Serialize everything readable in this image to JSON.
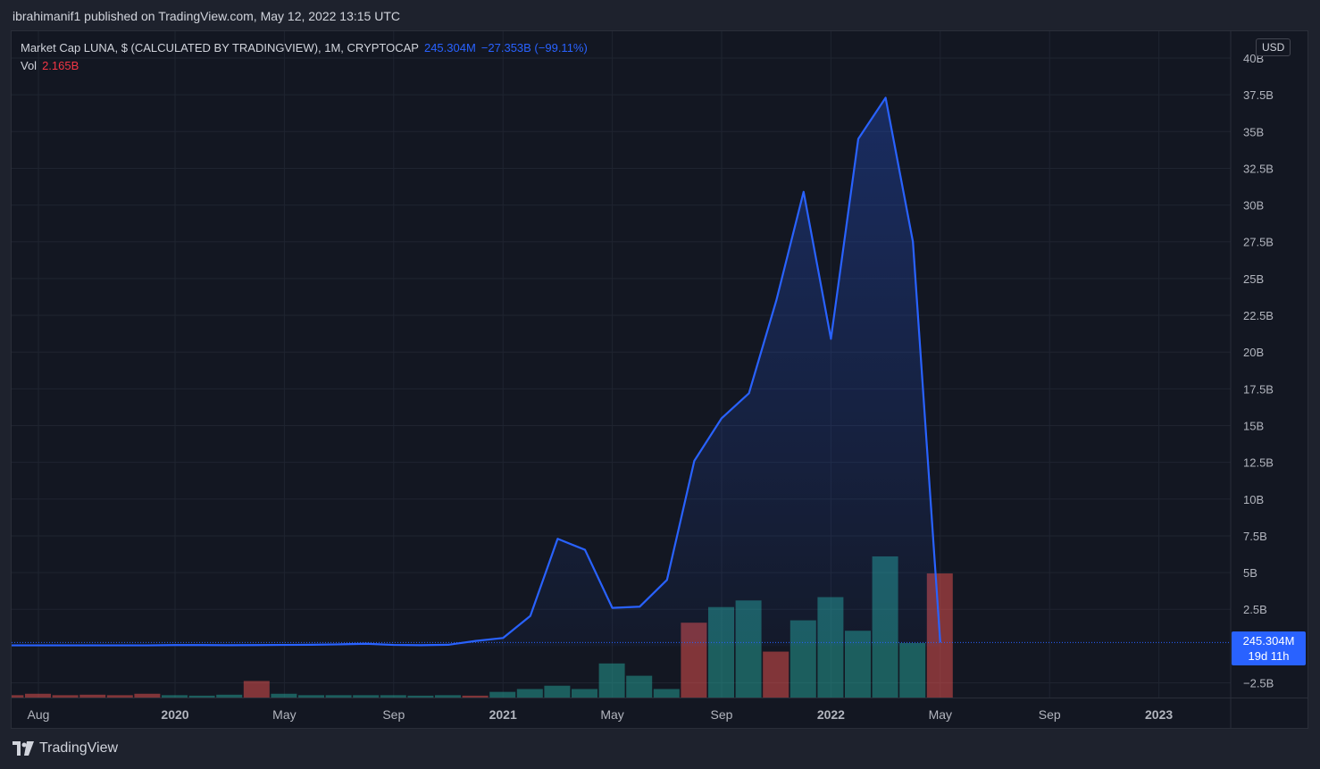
{
  "header": {
    "published": "ibrahimanif1 published on TradingView.com, May 12, 2022 13:15 UTC"
  },
  "legend": {
    "title": "Market Cap LUNA, $ (CALCULATED BY TRADINGVIEW), 1M, CRYPTOCAP",
    "last_value": "245.304M",
    "change": "−27.353B (−99.11%)",
    "vol_label": "Vol",
    "vol_value": "2.165B"
  },
  "currency": "USD",
  "price_tag": {
    "value": "245.304M",
    "countdown": "19d 11h"
  },
  "footer": {
    "brand": "TradingView"
  },
  "colors": {
    "line": "#2962ff",
    "vol_up": "#26a69a",
    "vol_down": "#ef5350",
    "background": "#131722",
    "grid": "#1f2430"
  },
  "chart_data": {
    "type": "line",
    "symbol": "Market Cap LUNA",
    "interval": "1M",
    "ylim": [
      -3.5,
      40
    ],
    "y_unit": "B USD",
    "y_ticks": [
      "40B",
      "37.5B",
      "35B",
      "32.5B",
      "30B",
      "27.5B",
      "25B",
      "22.5B",
      "20B",
      "17.5B",
      "15B",
      "12.5B",
      "10B",
      "7.5B",
      "5B",
      "2.5B",
      "−2.5B"
    ],
    "y_tick_values": [
      40,
      37.5,
      35,
      32.5,
      30,
      27.5,
      25,
      22.5,
      20,
      17.5,
      15,
      12.5,
      10,
      7.5,
      5,
      2.5,
      -2.5
    ],
    "x_ticks": [
      "Aug",
      "2020",
      "May",
      "Sep",
      "2021",
      "May",
      "Sep",
      "2022",
      "May",
      "Sep",
      "2023"
    ],
    "x_tick_dates": [
      "2019-08",
      "2020-01",
      "2020-05",
      "2020-09",
      "2021-01",
      "2021-05",
      "2021-09",
      "2022-01",
      "2022-05",
      "2022-09",
      "2023-01"
    ],
    "x_tick_bold": [
      false,
      true,
      false,
      false,
      true,
      false,
      false,
      true,
      false,
      false,
      true
    ],
    "grid": true,
    "market_cap": {
      "dates": [
        "2019-07",
        "2019-08",
        "2019-09",
        "2019-10",
        "2019-11",
        "2019-12",
        "2020-01",
        "2020-02",
        "2020-03",
        "2020-04",
        "2020-05",
        "2020-06",
        "2020-07",
        "2020-08",
        "2020-09",
        "2020-10",
        "2020-11",
        "2020-12",
        "2021-01",
        "2021-02",
        "2021-03",
        "2021-04",
        "2021-05",
        "2021-06",
        "2021-07",
        "2021-08",
        "2021-09",
        "2021-10",
        "2021-11",
        "2021-12",
        "2022-01",
        "2022-02",
        "2022-03",
        "2022-04",
        "2022-05"
      ],
      "values": [
        0.05,
        0.05,
        0.05,
        0.05,
        0.05,
        0.05,
        0.07,
        0.07,
        0.06,
        0.07,
        0.08,
        0.09,
        0.12,
        0.16,
        0.08,
        0.06,
        0.09,
        0.35,
        0.55,
        2.05,
        7.3,
        6.55,
        2.6,
        2.68,
        4.5,
        12.6,
        15.5,
        17.2,
        23.5,
        30.9,
        20.9,
        34.5,
        37.3,
        27.5,
        0.245
      ]
    },
    "volume": {
      "dates": [
        "2019-07",
        "2019-08",
        "2019-09",
        "2019-10",
        "2019-11",
        "2019-12",
        "2020-01",
        "2020-02",
        "2020-03",
        "2020-04",
        "2020-05",
        "2020-06",
        "2020-07",
        "2020-08",
        "2020-09",
        "2020-10",
        "2020-11",
        "2020-12",
        "2021-01",
        "2021-02",
        "2021-03",
        "2021-04",
        "2021-05",
        "2021-06",
        "2021-07",
        "2021-08",
        "2021-09",
        "2021-10",
        "2021-11",
        "2021-12",
        "2022-01",
        "2022-02",
        "2022-03",
        "2022-04",
        "2022-05"
      ],
      "values": [
        0.005,
        0.008,
        0.005,
        0.006,
        0.005,
        0.008,
        0.005,
        0.004,
        0.006,
        0.035,
        0.008,
        0.005,
        0.005,
        0.005,
        0.005,
        0.004,
        0.005,
        0.004,
        0.012,
        0.018,
        0.025,
        0.018,
        0.072,
        0.046,
        0.018,
        0.158,
        0.191,
        0.205,
        0.097,
        0.163,
        0.212,
        0.141,
        0.298,
        0.115,
        0.262
      ],
      "direction": [
        "down",
        "down",
        "down",
        "down",
        "down",
        "down",
        "up",
        "up",
        "up",
        "down",
        "up",
        "up",
        "up",
        "up",
        "up",
        "up",
        "up",
        "down",
        "up",
        "up",
        "up",
        "up",
        "up",
        "up",
        "up",
        "down",
        "up",
        "up",
        "down",
        "up",
        "up",
        "up",
        "up",
        "up",
        "down"
      ]
    },
    "vol_pane_max": 1.35
  }
}
